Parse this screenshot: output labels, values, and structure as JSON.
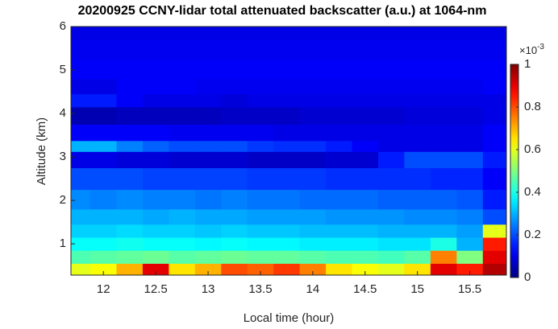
{
  "chart_data": {
    "type": "heatmap",
    "title": "20200925 CCNY-lidar total attenuated backscatter (a.u.) at 1064-nm",
    "x_label": "Local time (hour)",
    "y_label": "Altitude (km)",
    "colormap": "jet",
    "colorbar_label": {
      "base": "×10",
      "exponent": "-3"
    },
    "clim": [
      0,
      1
    ],
    "cticks": [
      0,
      0.2,
      0.4,
      0.6,
      0.8,
      1
    ],
    "xlim": [
      11.69,
      15.85
    ],
    "xticks": [
      12,
      12.5,
      13,
      13.5,
      14,
      14.5,
      15,
      15.5
    ],
    "ylim": [
      0.28,
      6
    ],
    "yticks": [
      1,
      2,
      3,
      4,
      5,
      6
    ],
    "x": [
      11.75,
      12,
      12.25,
      12.5,
      12.75,
      13,
      13.25,
      13.5,
      13.75,
      14,
      14.25,
      14.5,
      14.75,
      15,
      15.25,
      15.5,
      15.75
    ],
    "y": [
      0.4,
      0.7,
      1.0,
      1.3,
      1.6,
      2.0,
      2.5,
      3.0,
      3.25,
      3.5,
      4.0,
      4.3,
      4.6,
      5.0,
      5.5,
      5.9
    ],
    "z": [
      [
        0.6,
        0.62,
        0.7,
        0.9,
        0.65,
        0.7,
        0.8,
        0.78,
        0.82,
        0.75,
        0.65,
        0.62,
        0.6,
        0.65,
        0.9,
        0.85,
        0.95
      ],
      [
        0.45,
        0.46,
        0.47,
        0.48,
        0.46,
        0.47,
        0.48,
        0.47,
        0.47,
        0.46,
        0.45,
        0.45,
        0.44,
        0.46,
        0.75,
        0.5,
        0.9
      ],
      [
        0.38,
        0.38,
        0.39,
        0.38,
        0.38,
        0.37,
        0.38,
        0.37,
        0.37,
        0.36,
        0.36,
        0.36,
        0.35,
        0.35,
        0.4,
        0.3,
        0.85
      ],
      [
        0.33,
        0.33,
        0.34,
        0.33,
        0.33,
        0.32,
        0.33,
        0.32,
        0.32,
        0.31,
        0.31,
        0.31,
        0.3,
        0.3,
        0.3,
        0.28,
        0.6
      ],
      [
        0.3,
        0.3,
        0.3,
        0.29,
        0.3,
        0.29,
        0.29,
        0.28,
        0.28,
        0.28,
        0.27,
        0.27,
        0.27,
        0.26,
        0.26,
        0.25,
        0.2
      ],
      [
        0.26,
        0.25,
        0.26,
        0.25,
        0.25,
        0.24,
        0.25,
        0.24,
        0.24,
        0.23,
        0.23,
        0.23,
        0.22,
        0.22,
        0.22,
        0.21,
        0.15
      ],
      [
        0.2,
        0.2,
        0.2,
        0.19,
        0.19,
        0.19,
        0.19,
        0.18,
        0.18,
        0.18,
        0.17,
        0.17,
        0.17,
        0.17,
        0.16,
        0.16,
        0.12
      ],
      [
        0.1,
        0.1,
        0.09,
        0.09,
        0.08,
        0.08,
        0.08,
        0.07,
        0.07,
        0.07,
        0.08,
        0.08,
        0.15,
        0.2,
        0.2,
        0.2,
        0.15
      ],
      [
        0.3,
        0.3,
        0.25,
        0.22,
        0.2,
        0.2,
        0.2,
        0.18,
        0.17,
        0.17,
        0.15,
        0.12,
        0.1,
        0.1,
        0.1,
        0.1,
        0.12
      ],
      [
        0.12,
        0.12,
        0.12,
        0.12,
        0.11,
        0.11,
        0.11,
        0.11,
        0.1,
        0.1,
        0.1,
        0.1,
        0.1,
        0.1,
        0.1,
        0.1,
        0.12
      ],
      [
        0.05,
        0.05,
        0.06,
        0.06,
        0.06,
        0.06,
        0.07,
        0.07,
        0.07,
        0.08,
        0.08,
        0.08,
        0.08,
        0.09,
        0.09,
        0.09,
        0.1
      ],
      [
        0.15,
        0.15,
        0.12,
        0.1,
        0.1,
        0.1,
        0.09,
        0.1,
        0.1,
        0.1,
        0.1,
        0.1,
        0.1,
        0.1,
        0.1,
        0.1,
        0.1
      ],
      [
        0.1,
        0.1,
        0.12,
        0.12,
        0.12,
        0.11,
        0.11,
        0.11,
        0.11,
        0.11,
        0.11,
        0.11,
        0.11,
        0.11,
        0.11,
        0.11,
        0.12
      ],
      [
        0.12,
        0.12,
        0.12,
        0.12,
        0.12,
        0.12,
        0.12,
        0.12,
        0.12,
        0.12,
        0.12,
        0.12,
        0.12,
        0.12,
        0.12,
        0.12,
        0.12
      ],
      [
        0.11,
        0.11,
        0.11,
        0.11,
        0.11,
        0.11,
        0.11,
        0.11,
        0.11,
        0.11,
        0.11,
        0.11,
        0.11,
        0.11,
        0.11,
        0.11,
        0.11
      ],
      [
        0.1,
        0.1,
        0.1,
        0.1,
        0.1,
        0.1,
        0.1,
        0.1,
        0.1,
        0.1,
        0.1,
        0.1,
        0.1,
        0.1,
        0.1,
        0.1,
        0.1
      ]
    ]
  }
}
